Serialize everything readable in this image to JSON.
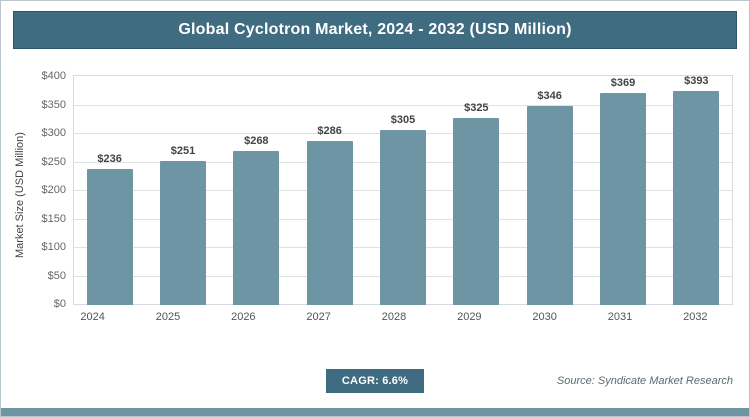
{
  "header": {
    "title": "Global Cyclotron Market, 2024 - 2032 (USD Million)"
  },
  "chart_data": {
    "type": "bar",
    "title": "Global Cyclotron Market, 2024 - 2032 (USD Million)",
    "categories": [
      "2024",
      "2025",
      "2026",
      "2027",
      "2028",
      "2029",
      "2030",
      "2031",
      "2032"
    ],
    "values": [
      236,
      251,
      268,
      286,
      305,
      325,
      346,
      369,
      393
    ],
    "value_labels": [
      "$236",
      "$251",
      "$268",
      "$286",
      "$305",
      "$325",
      "$346",
      "$369",
      "$393"
    ],
    "xlabel": "",
    "ylabel": "Market Size (USD Million)",
    "ylim": [
      0,
      400
    ],
    "ytick_step": 50,
    "yticks": [
      "$0",
      "$50",
      "$100",
      "$150",
      "$200",
      "$250",
      "$300",
      "$350",
      "$400"
    ],
    "grid": true,
    "legend": "none"
  },
  "footer": {
    "cagr_label": "CAGR: 6.6%",
    "source": "Source: Syndicate Market Research"
  },
  "colors": {
    "accent": "#3f6c80",
    "bar": "#6e95a4",
    "strip": "#6e95a4",
    "gridline": "#dde2e5"
  }
}
